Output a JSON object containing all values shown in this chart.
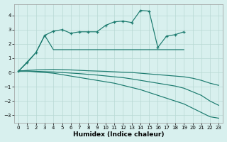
{
  "xlabel": "Humidex (Indice chaleur)",
  "bg_color": "#d8f0ee",
  "grid_color": "#b8d8d4",
  "line_color": "#1a7a6e",
  "ylim": [
    -3.5,
    4.8
  ],
  "yticks": [
    -3,
    -2,
    -1,
    0,
    1,
    2,
    3,
    4
  ],
  "xticks": [
    0,
    1,
    2,
    3,
    4,
    5,
    6,
    7,
    8,
    9,
    10,
    11,
    12,
    13,
    14,
    15,
    16,
    17,
    18,
    19,
    20,
    21,
    22,
    23
  ],
  "series_top_x": [
    0,
    1,
    2,
    3,
    4,
    5,
    6,
    7,
    8,
    9,
    10,
    11,
    12,
    13,
    14,
    15,
    16,
    17,
    18,
    19
  ],
  "series_top_y": [
    0.1,
    0.7,
    1.4,
    2.6,
    2.9,
    3.0,
    2.75,
    2.85,
    2.85,
    2.85,
    3.3,
    3.55,
    3.6,
    3.5,
    4.35,
    4.3,
    1.75,
    2.55,
    2.65,
    2.85
  ],
  "series_cross_x": [
    0,
    2,
    3,
    4,
    5,
    6,
    7,
    8,
    9,
    10,
    11,
    12,
    13,
    14,
    15,
    16,
    17,
    18,
    19
  ],
  "series_cross_y": [
    0.1,
    1.4,
    2.6,
    1.6,
    1.6,
    1.6,
    1.6,
    1.6,
    1.6,
    1.6,
    1.6,
    1.6,
    1.6,
    1.6,
    1.6,
    1.6,
    1.6,
    1.6,
    1.6
  ],
  "series_flat1_x": [
    0,
    1,
    2,
    3,
    4,
    5,
    6,
    7,
    8,
    9,
    10,
    11,
    12,
    13,
    14,
    15,
    16,
    17,
    18,
    19,
    20,
    21,
    22,
    23
  ],
  "series_flat1_y": [
    0.1,
    0.15,
    0.18,
    0.2,
    0.22,
    0.2,
    0.18,
    0.15,
    0.12,
    0.1,
    0.08,
    0.05,
    0.02,
    0.0,
    -0.05,
    -0.1,
    -0.15,
    -0.2,
    -0.25,
    -0.3,
    -0.4,
    -0.55,
    -0.75,
    -0.9
  ],
  "series_flat2_x": [
    0,
    1,
    2,
    3,
    4,
    5,
    6,
    7,
    8,
    9,
    10,
    11,
    12,
    13,
    14,
    15,
    16,
    17,
    18,
    19,
    20,
    21,
    22,
    23
  ],
  "series_flat2_y": [
    0.1,
    0.1,
    0.08,
    0.06,
    0.04,
    0.0,
    -0.04,
    -0.08,
    -0.13,
    -0.18,
    -0.24,
    -0.3,
    -0.36,
    -0.45,
    -0.55,
    -0.65,
    -0.75,
    -0.85,
    -0.95,
    -1.1,
    -1.35,
    -1.6,
    -2.0,
    -2.3
  ],
  "series_down_x": [
    0,
    1,
    2,
    3,
    4,
    5,
    6,
    7,
    8,
    9,
    10,
    11,
    12,
    13,
    14,
    15,
    16,
    17,
    18,
    19,
    20,
    21,
    22,
    23
  ],
  "series_down_y": [
    0.1,
    0.1,
    0.05,
    0.0,
    -0.05,
    -0.15,
    -0.25,
    -0.35,
    -0.45,
    -0.55,
    -0.65,
    -0.75,
    -0.9,
    -1.05,
    -1.2,
    -1.4,
    -1.6,
    -1.8,
    -2.0,
    -2.2,
    -2.5,
    -2.8,
    -3.1,
    -3.2
  ]
}
